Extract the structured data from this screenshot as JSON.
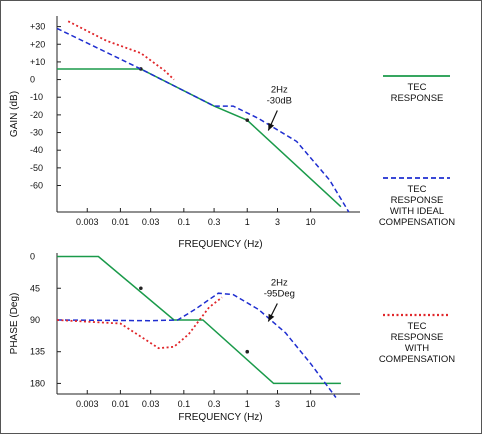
{
  "colors": {
    "green": "#1a9a4a",
    "blue": "#1f2ed0",
    "red": "#e0262a",
    "axis": "#222222",
    "frame": "#555555"
  },
  "chart_data": [
    {
      "type": "line",
      "xlabel": "FREQUENCY (Hz)",
      "ylabel": "GAIN (dB)",
      "x_scale": "log",
      "xlim": [
        0.001,
        60
      ],
      "ylim": [
        -75,
        36
      ],
      "x_ticks": [
        {
          "value": 0.003,
          "label": "0.003"
        },
        {
          "value": 0.01,
          "label": "0.01"
        },
        {
          "value": 0.03,
          "label": "0.03"
        },
        {
          "value": 0.1,
          "label": "0.1"
        },
        {
          "value": 0.3,
          "label": "0.3"
        },
        {
          "value": 1,
          "label": "1"
        },
        {
          "value": 3,
          "label": "3"
        },
        {
          "value": 10,
          "label": "10"
        }
      ],
      "y_ticks": [
        {
          "value": 30,
          "label": "+30"
        },
        {
          "value": 20,
          "label": "+20"
        },
        {
          "value": 10,
          "label": "+10"
        },
        {
          "value": 0,
          "label": "0"
        },
        {
          "value": -10,
          "label": "-10"
        },
        {
          "value": -20,
          "label": "-20"
        },
        {
          "value": -30,
          "label": "-30"
        },
        {
          "value": -40,
          "label": "-40"
        },
        {
          "value": -50,
          "label": "-50"
        },
        {
          "value": -60,
          "label": "-60"
        }
      ],
      "series": [
        {
          "name": "TEC RESPONSE",
          "style": "solid",
          "color": "green",
          "x": [
            0.001,
            0.021,
            0.3,
            1,
            30
          ],
          "y": [
            6,
            6,
            -15,
            -23,
            -72
          ],
          "markers": [
            {
              "x": 0.021,
              "y": 6
            },
            {
              "x": 1,
              "y": -23
            }
          ]
        },
        {
          "name": "TEC RESPONSE WITH IDEAL COMPENSATION",
          "style": "dashed",
          "color": "blue",
          "x": [
            0.001,
            0.021,
            0.3,
            0.6,
            1.5,
            6,
            20,
            40
          ],
          "y": [
            29,
            6,
            -15,
            -15,
            -22,
            -35,
            -57,
            -75
          ]
        },
        {
          "name": "TEC RESPONSE WITH COMPENSATION",
          "style": "dotted",
          "color": "red",
          "x": [
            0.0015,
            0.006,
            0.021,
            0.05,
            0.07
          ],
          "y": [
            33,
            22,
            15,
            5,
            0
          ]
        }
      ],
      "annotation": {
        "lines": [
          "2Hz",
          "-30dB"
        ],
        "x": 2,
        "y": -30
      }
    },
    {
      "type": "line",
      "xlabel": "FREQUENCY (Hz)",
      "ylabel": "PHASE (Deg)",
      "x_scale": "log",
      "xlim": [
        0.001,
        60
      ],
      "ylim": [
        -5,
        195
      ],
      "y_inverted": true,
      "x_ticks": [
        {
          "value": 0.003,
          "label": "0.003"
        },
        {
          "value": 0.01,
          "label": "0.01"
        },
        {
          "value": 0.03,
          "label": "0.03"
        },
        {
          "value": 0.1,
          "label": "0.1"
        },
        {
          "value": 0.3,
          "label": "0.3"
        },
        {
          "value": 1,
          "label": "1"
        },
        {
          "value": 3,
          "label": "3"
        },
        {
          "value": 10,
          "label": "10"
        }
      ],
      "y_ticks": [
        {
          "value": 0,
          "label": "0"
        },
        {
          "value": 45,
          "label": "45"
        },
        {
          "value": 90,
          "label": "90"
        },
        {
          "value": 135,
          "label": "135"
        },
        {
          "value": 180,
          "label": "180"
        }
      ],
      "series": [
        {
          "name": "TEC RESPONSE",
          "style": "solid",
          "color": "green",
          "x": [
            0.001,
            0.0045,
            0.07,
            0.2,
            2.6,
            30
          ],
          "y": [
            0,
            0,
            90,
            90,
            180,
            180
          ],
          "markers": [
            {
              "x": 0.021,
              "y": 45
            },
            {
              "x": 1,
              "y": 135
            }
          ]
        },
        {
          "name": "TEC RESPONSE WITH IDEAL COMPENSATION",
          "style": "dashed",
          "color": "blue",
          "x": [
            0.001,
            0.03,
            0.08,
            0.15,
            0.35,
            0.6,
            1.5,
            4,
            10,
            25
          ],
          "y": [
            90,
            91,
            90,
            75,
            52,
            54,
            75,
            108,
            152,
            200
          ]
        },
        {
          "name": "TEC RESPONSE WITH COMPENSATION",
          "style": "dotted",
          "color": "red",
          "x": [
            0.001,
            0.01,
            0.025,
            0.04,
            0.07,
            0.12,
            0.25,
            0.4
          ],
          "y": [
            90,
            95,
            118,
            130,
            128,
            110,
            72,
            58
          ]
        }
      ],
      "annotation": {
        "lines": [
          "2Hz",
          "-95Deg"
        ],
        "x": 2,
        "y": 95
      }
    }
  ],
  "legend": [
    {
      "color": "green",
      "style": "solid",
      "lines": [
        "TEC",
        "RESPONSE"
      ]
    },
    {
      "color": "blue",
      "style": "dashed",
      "lines": [
        "TEC",
        "RESPONSE",
        "WITH IDEAL",
        "COMPENSATION"
      ]
    },
    {
      "color": "red",
      "style": "dotted",
      "lines": [
        "TEC",
        "RESPONSE",
        "WITH",
        "COMPENSATION"
      ]
    }
  ]
}
